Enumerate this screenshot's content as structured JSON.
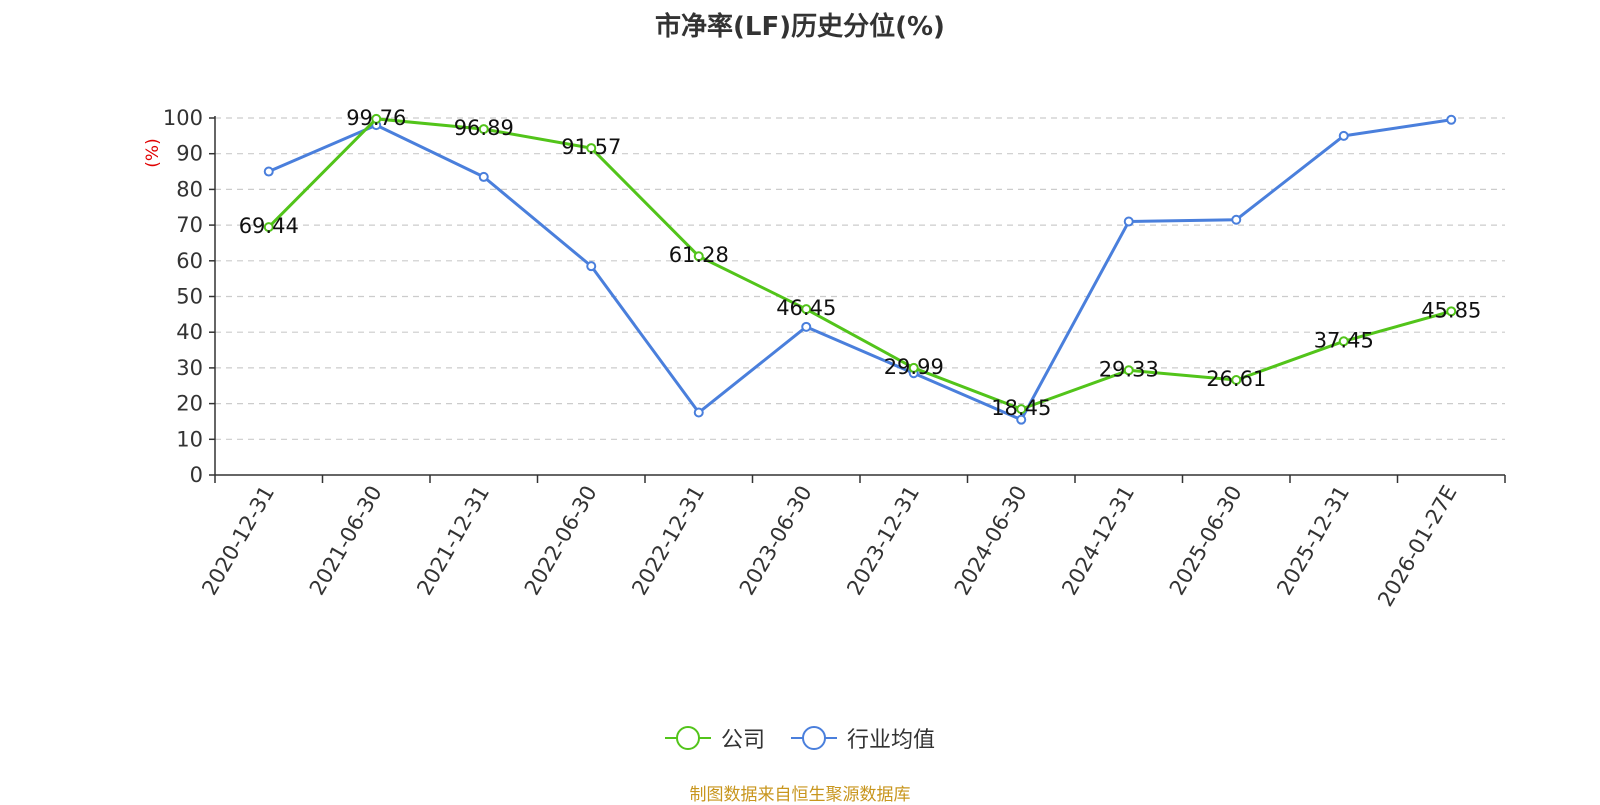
{
  "chart_data": {
    "type": "line",
    "title": "市净率(LF)历史分位(%)",
    "ylabel": "(%)",
    "xlabel": "",
    "ylim": [
      0,
      100
    ],
    "yticks": [
      0,
      10,
      20,
      30,
      40,
      50,
      60,
      70,
      80,
      90,
      100
    ],
    "grid": true,
    "legend_position": "bottom",
    "categories": [
      "2020-12-31",
      "2021-06-30",
      "2021-12-31",
      "2022-06-30",
      "2022-12-31",
      "2023-06-30",
      "2023-12-31",
      "2024-06-30",
      "2024-12-31",
      "2025-06-30",
      "2025-12-31",
      "2026-01-27E"
    ],
    "series": [
      {
        "name": "公司",
        "color": "#52c41a",
        "show_labels": true,
        "values": [
          69.44,
          99.76,
          96.89,
          91.57,
          61.28,
          46.45,
          29.99,
          18.45,
          29.33,
          26.61,
          37.45,
          45.85
        ],
        "labels": [
          "69.44",
          "99.76",
          "96.89",
          "91.57",
          "61.28",
          "46.45",
          "29.99",
          "18.45",
          "29.33",
          "26.61",
          "37.45",
          "45.85"
        ]
      },
      {
        "name": "行业均值",
        "color": "#4a7fdc",
        "show_labels": false,
        "values": [
          85,
          98,
          83.5,
          58.5,
          17.5,
          41.5,
          28.5,
          15.5,
          71,
          71.5,
          95,
          99.5
        ]
      }
    ]
  },
  "footer": {
    "source": "制图数据来自恒生聚源数据库"
  },
  "colors": {
    "ylabel": "#e00000",
    "axis": "#333333",
    "grid": "#cccccc",
    "source": "#c8961e"
  }
}
